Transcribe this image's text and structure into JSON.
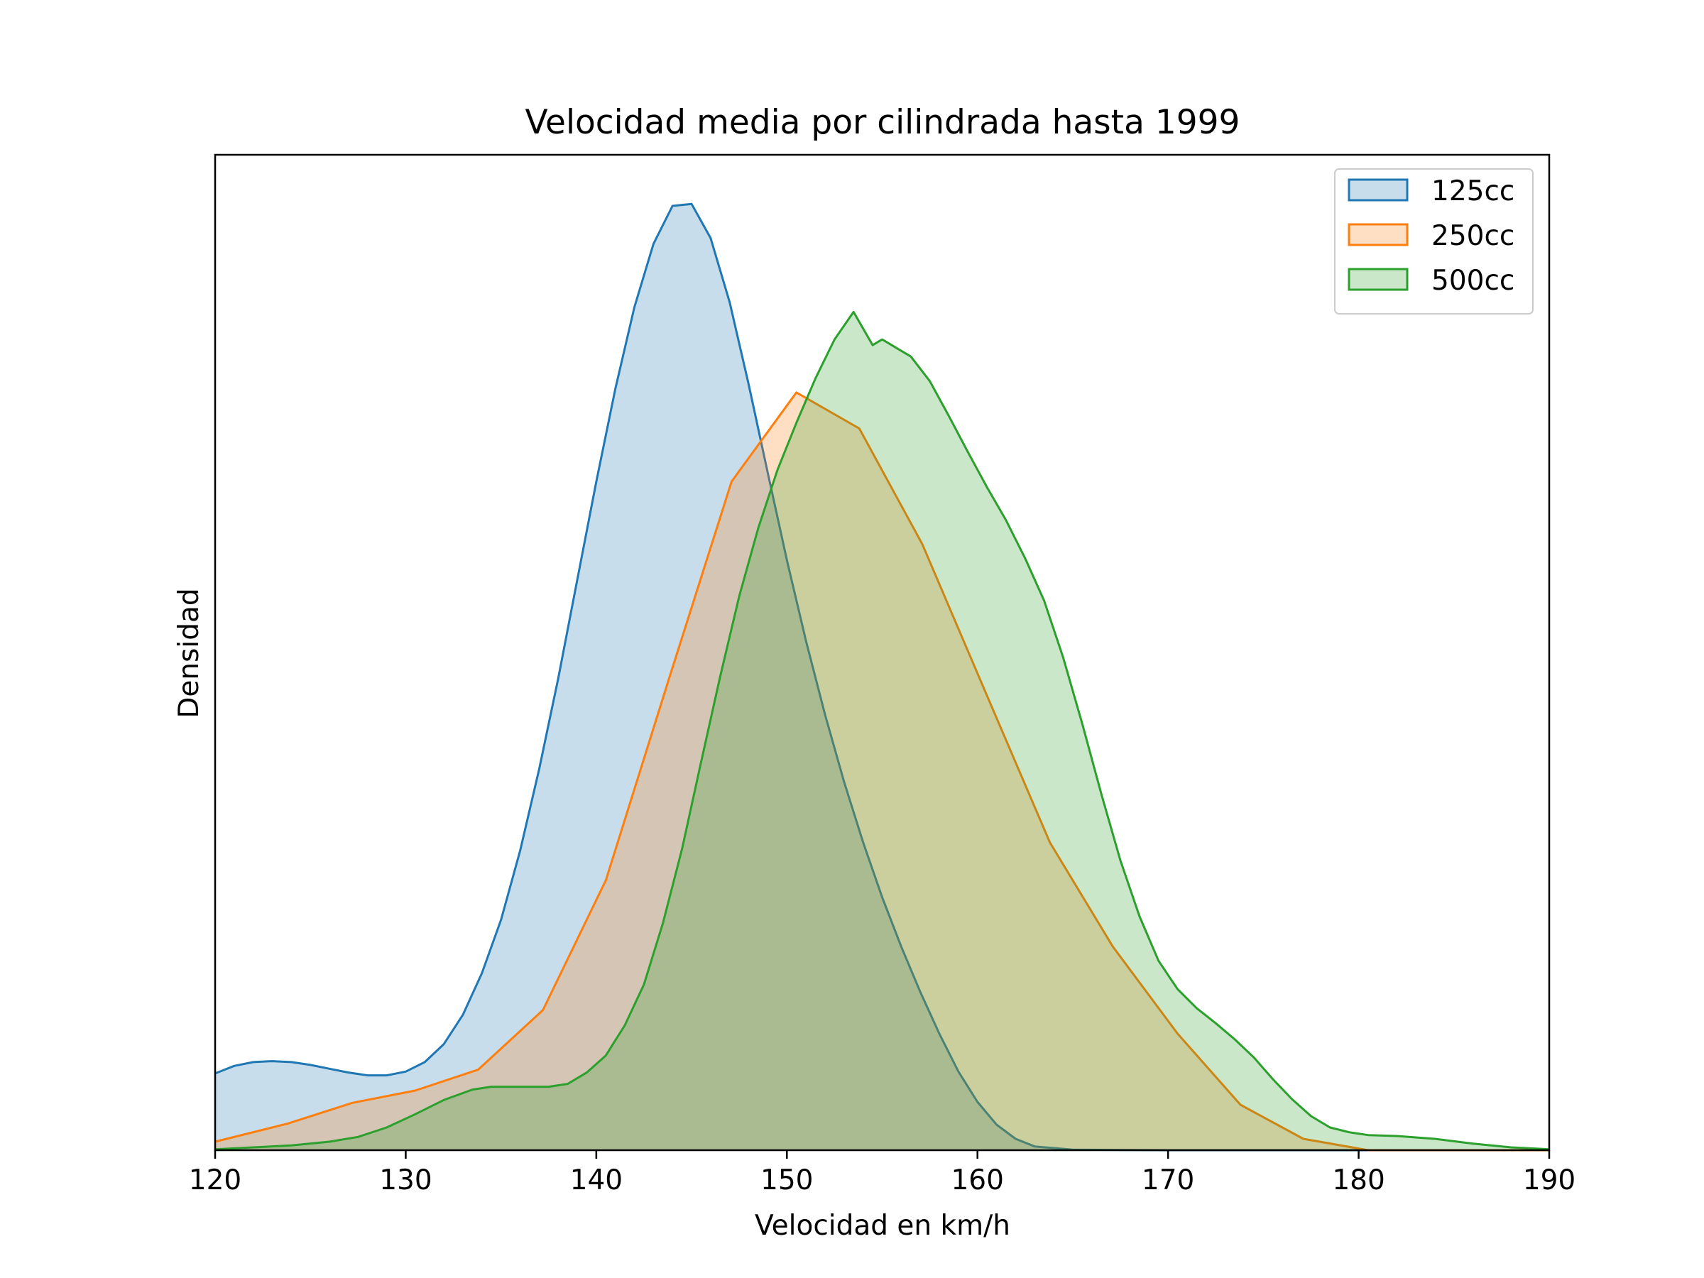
{
  "chart_data": {
    "type": "area",
    "title": "Velocidad media por cilindrada hasta 1999",
    "xlabel": "Velocidad en km/h",
    "ylabel": "Densidad",
    "xlim": [
      120,
      190
    ],
    "ylim": [
      0,
      1
    ],
    "y_ticks_shown": false,
    "x_ticks": [
      "120",
      "130",
      "140",
      "150",
      "160",
      "170",
      "180",
      "190"
    ],
    "grid": false,
    "legend_position": "top-right",
    "series": [
      {
        "name": "125cc",
        "color": "#1f77b4",
        "points": [
          [
            120,
            0.081
          ],
          [
            121,
            0.089
          ],
          [
            122,
            0.093
          ],
          [
            123,
            0.094
          ],
          [
            124,
            0.093
          ],
          [
            125,
            0.09
          ],
          [
            126,
            0.086
          ],
          [
            127,
            0.082
          ],
          [
            128,
            0.079
          ],
          [
            129,
            0.079
          ],
          [
            130,
            0.083
          ],
          [
            131,
            0.093
          ],
          [
            132,
            0.112
          ],
          [
            133,
            0.143
          ],
          [
            134,
            0.187
          ],
          [
            135,
            0.243
          ],
          [
            136,
            0.316
          ],
          [
            137,
            0.402
          ],
          [
            138,
            0.498
          ],
          [
            139,
            0.602
          ],
          [
            140,
            0.706
          ],
          [
            141,
            0.804
          ],
          [
            142,
            0.89
          ],
          [
            143,
            0.957
          ],
          [
            144,
            0.997
          ],
          [
            145,
            0.999
          ],
          [
            146,
            0.963
          ],
          [
            147,
            0.895
          ],
          [
            148,
            0.808
          ],
          [
            149,
            0.715
          ],
          [
            150,
            0.623
          ],
          [
            151,
            0.538
          ],
          [
            152,
            0.46
          ],
          [
            153,
            0.389
          ],
          [
            154,
            0.325
          ],
          [
            155,
            0.267
          ],
          [
            156,
            0.215
          ],
          [
            157,
            0.167
          ],
          [
            158,
            0.123
          ],
          [
            159,
            0.083
          ],
          [
            160,
            0.051
          ],
          [
            161,
            0.027
          ],
          [
            162,
            0.012
          ],
          [
            163,
            0.004
          ],
          [
            165,
            0.0005
          ],
          [
            170,
            0.0
          ],
          [
            190,
            0.0
          ]
        ]
      },
      {
        "name": "250cc",
        "color": "#ff7f0e",
        "points": [
          [
            120,
            0.009
          ],
          [
            123.8,
            0.028
          ],
          [
            127.2,
            0.05
          ],
          [
            130.5,
            0.063
          ],
          [
            133.8,
            0.085
          ],
          [
            137.2,
            0.148
          ],
          [
            140.5,
            0.285
          ],
          [
            143.8,
            0.497
          ],
          [
            147.1,
            0.706
          ],
          [
            150.5,
            0.8
          ],
          [
            153.8,
            0.762
          ],
          [
            157.1,
            0.64
          ],
          [
            160.5,
            0.48
          ],
          [
            163.8,
            0.325
          ],
          [
            167.1,
            0.215
          ],
          [
            170.5,
            0.123
          ],
          [
            173.8,
            0.048
          ],
          [
            177.1,
            0.012
          ],
          [
            180.5,
            0.0
          ],
          [
            190,
            0.0
          ]
        ]
      },
      {
        "name": "500cc",
        "color": "#2ca02c",
        "points": [
          [
            120,
            0.001
          ],
          [
            122,
            0.003
          ],
          [
            124,
            0.005
          ],
          [
            126,
            0.009
          ],
          [
            127.5,
            0.014
          ],
          [
            129,
            0.024
          ],
          [
            130.5,
            0.038
          ],
          [
            132,
            0.053
          ],
          [
            133.5,
            0.064
          ],
          [
            134.5,
            0.067
          ],
          [
            136,
            0.067
          ],
          [
            137.5,
            0.067
          ],
          [
            138.5,
            0.07
          ],
          [
            139.5,
            0.082
          ],
          [
            140.5,
            0.1
          ],
          [
            141.5,
            0.132
          ],
          [
            142.5,
            0.175
          ],
          [
            143.5,
            0.24
          ],
          [
            144.5,
            0.318
          ],
          [
            145.5,
            0.41
          ],
          [
            146.5,
            0.5
          ],
          [
            147.5,
            0.585
          ],
          [
            148.5,
            0.657
          ],
          [
            149.5,
            0.718
          ],
          [
            150.5,
            0.768
          ],
          [
            151.5,
            0.815
          ],
          [
            152.5,
            0.856
          ],
          [
            153.5,
            0.885
          ],
          [
            154.5,
            0.85
          ],
          [
            155,
            0.856
          ],
          [
            155.5,
            0.85
          ],
          [
            156.5,
            0.838
          ],
          [
            157.5,
            0.812
          ],
          [
            158.5,
            0.775
          ],
          [
            159.5,
            0.737
          ],
          [
            160.5,
            0.7
          ],
          [
            161.5,
            0.665
          ],
          [
            162.5,
            0.625
          ],
          [
            163.5,
            0.58
          ],
          [
            164.5,
            0.52
          ],
          [
            165.5,
            0.45
          ],
          [
            166.5,
            0.376
          ],
          [
            167.5,
            0.306
          ],
          [
            168.5,
            0.247
          ],
          [
            169.5,
            0.2
          ],
          [
            170.5,
            0.17
          ],
          [
            171.5,
            0.15
          ],
          [
            172.5,
            0.134
          ],
          [
            173.5,
            0.117
          ],
          [
            174.5,
            0.098
          ],
          [
            175.5,
            0.075
          ],
          [
            176.5,
            0.054
          ],
          [
            177.5,
            0.036
          ],
          [
            178.5,
            0.024
          ],
          [
            179.5,
            0.019
          ],
          [
            180.5,
            0.016
          ],
          [
            182,
            0.015
          ],
          [
            184,
            0.012
          ],
          [
            186,
            0.007
          ],
          [
            188,
            0.003
          ],
          [
            190,
            0.001
          ]
        ]
      }
    ]
  }
}
